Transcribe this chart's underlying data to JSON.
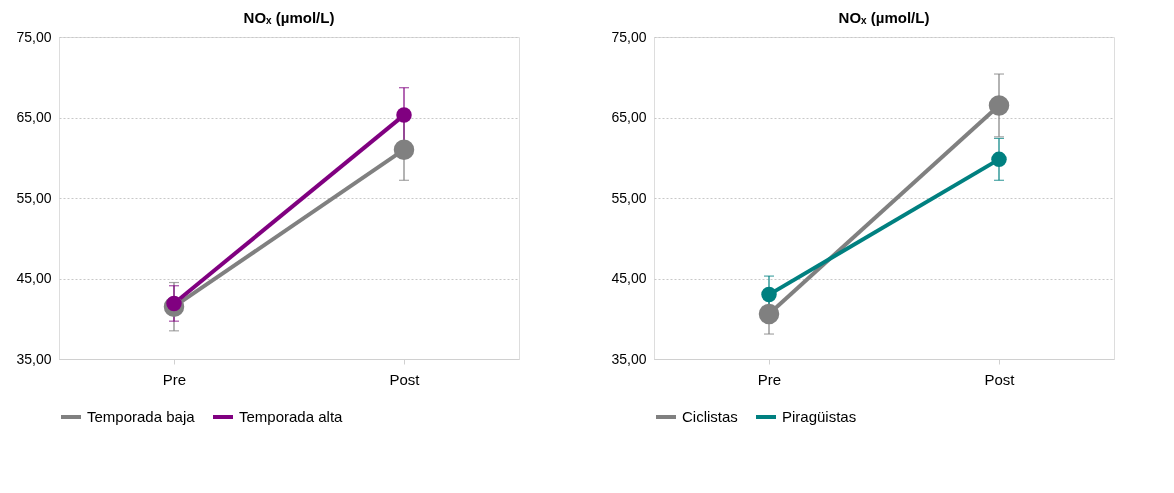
{
  "chart_data": [
    {
      "type": "line",
      "title": "NOₓ (µmol/L)",
      "categories": [
        "Pre",
        "Post"
      ],
      "ylim": [
        35,
        75
      ],
      "yticks": [
        {
          "value": 35,
          "label": "35,00"
        },
        {
          "value": 45,
          "label": "45,00"
        },
        {
          "value": 55,
          "label": "55,00"
        },
        {
          "value": 65,
          "label": "65,00"
        },
        {
          "value": 75,
          "label": "75,00"
        }
      ],
      "grid": "y",
      "legend": "bottom",
      "marker": "circle",
      "line_style": "solid",
      "series": [
        {
          "name": "Temporada baja",
          "color": "#808080",
          "values": [
            41.5,
            61.0
          ],
          "errors": [
            3.0,
            3.8
          ]
        },
        {
          "name": "Temporada alta",
          "color": "#800080",
          "values": [
            41.9,
            65.3
          ],
          "errors": [
            2.2,
            3.4
          ]
        }
      ]
    },
    {
      "type": "line",
      "title": "NOₓ (µmol/L)",
      "categories": [
        "Pre",
        "Post"
      ],
      "ylim": [
        35,
        75
      ],
      "yticks": [
        {
          "value": 35,
          "label": "35,00"
        },
        {
          "value": 45,
          "label": "45,00"
        },
        {
          "value": 55,
          "label": "55,00"
        },
        {
          "value": 65,
          "label": "65,00"
        },
        {
          "value": 75,
          "label": "75,00"
        }
      ],
      "grid": "y",
      "legend": "bottom",
      "marker": "circle",
      "line_style": "solid",
      "series": [
        {
          "name": "Ciclistas",
          "color": "#808080",
          "values": [
            40.6,
            66.5
          ],
          "errors": [
            2.5,
            3.9
          ]
        },
        {
          "name": "Piragüistas",
          "color": "#008080",
          "values": [
            43.0,
            59.8
          ],
          "errors": [
            2.3,
            2.6
          ]
        }
      ]
    }
  ]
}
